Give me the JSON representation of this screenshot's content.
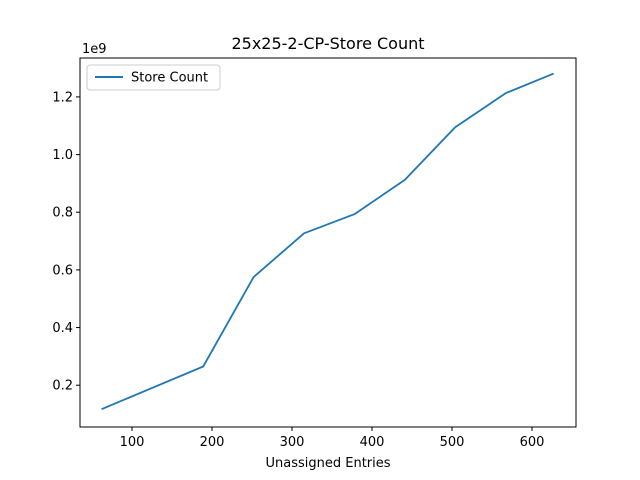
{
  "chart_data": {
    "type": "line",
    "title": "25x25-2-CP-Store Count",
    "xlabel": "Unassigned Entries",
    "ylabel": "",
    "y_offset_label": "1e9",
    "xlim": [
      35,
      655
    ],
    "ylim": [
      0.055,
      1.335
    ],
    "x_ticks": [
      100,
      200,
      300,
      400,
      500,
      600
    ],
    "y_ticks": [
      0.2,
      0.4,
      0.6,
      0.8,
      1.0,
      1.2
    ],
    "y_tick_labels": [
      "0.2",
      "0.4",
      "0.6",
      "0.8",
      "1.0",
      "1.2"
    ],
    "grid": false,
    "legend_position": "upper-left",
    "series": [
      {
        "name": "Store Count",
        "color": "#1f77b4",
        "x": [
          63,
          189,
          252,
          315,
          378,
          441,
          504,
          567,
          626
        ],
        "y": [
          0.118,
          0.265,
          0.575,
          0.727,
          0.793,
          0.912,
          1.095,
          1.213,
          1.28
        ]
      }
    ]
  }
}
